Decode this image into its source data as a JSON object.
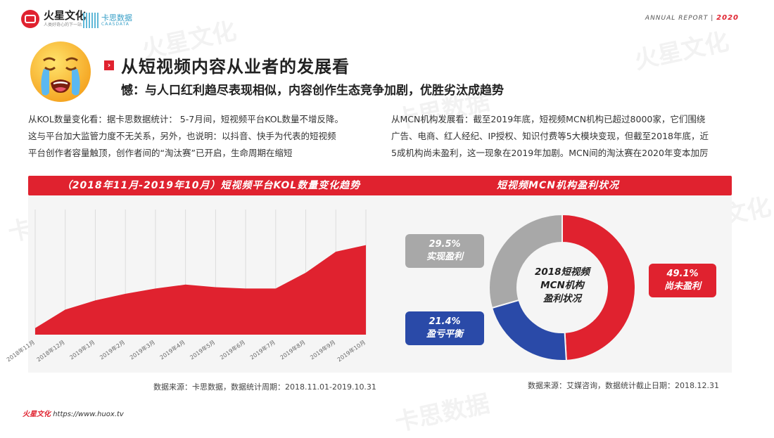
{
  "header": {
    "logo_name": "火星文化",
    "logo_tagline": "人类好奇心的下一站",
    "partner_name": "卡思数据",
    "partner_sub": "CAASDATA",
    "report_label": "ANNUAL REPORT",
    "report_separator": "|",
    "report_year": "2020"
  },
  "title": {
    "mark": "›",
    "main": "从短视频内容从业者的发展看",
    "subtitle": "憾：与人口红利趋尽表现相似，内容创作生态竞争加剧，优胜劣汰成趋势"
  },
  "paragraphs": {
    "left": [
      "从KOL数量变化看：据卡思数据统计：  5-7月间，短视频平台KOL数量不增反降。",
      "这与平台加大监管力度不无关系，另外，也说明：以抖音、快手为代表的短视频",
      "平台创作者容量触顶，创作者间的“淘汰赛”已开启，生命周期在缩短"
    ],
    "right": [
      "从MCN机构发展看：截至2019年底，短视频MCN机构已超过8000家，它们围绕",
      "广告、电商、红人经纪、IP授权、知识付费等5大模块变现，但截至2018年底，近",
      "5成机构尚未盈利，这一现象在2019年加剧。MCN间的淘汰赛在2020年变本加厉"
    ]
  },
  "left_panel": {
    "header": "（2018年11月-2019年10月）短视频平台KOL数量变化趋势",
    "source": "数据来源：卡思数据，数据统计周期：2018.11.01-2019.10.31"
  },
  "right_panel": {
    "header": "短视频MCN机构盈利状况",
    "center_lines": [
      "2018短视频",
      "MCN机构",
      "盈利状况"
    ],
    "source": "数据来源：艾媒咨询，数据统计截止日期：2018.12.31"
  },
  "footer": {
    "brand": "火星文化",
    "url": "https://www.huox.tv"
  },
  "watermarks": [
    "火星文化",
    "卡思数据",
    "火星文化",
    "卡思数据",
    "火星文化",
    "卡思数据"
  ],
  "chart_data": [
    {
      "type": "area",
      "title": "（2018年11月-2019年10月）短视频平台KOL数量变化趋势",
      "categories": [
        "2018年11月",
        "2018年12月",
        "2019年1月",
        "2019年2月",
        "2019年3月",
        "2019年4月",
        "2019年5月",
        "2019年6月",
        "2019年7月",
        "2019年8月",
        "2019年9月",
        "2019年10月"
      ],
      "values": [
        10,
        38,
        52,
        62,
        70,
        76,
        72,
        70,
        70,
        94,
        126,
        136
      ],
      "ylim": [
        0,
        190
      ],
      "grid": true,
      "color": "#e0222f"
    },
    {
      "type": "pie",
      "title": "短视频MCN机构盈利状况",
      "categories": [
        "尚未盈利",
        "盈亏平衡",
        "实现盈利"
      ],
      "labels": [
        "49.1%",
        "21.4%",
        "29.5%"
      ],
      "values": [
        49.1,
        21.4,
        29.5
      ],
      "colors": [
        "#e0222f",
        "#2a4aa8",
        "#a8a8a8"
      ],
      "donut": true
    }
  ]
}
